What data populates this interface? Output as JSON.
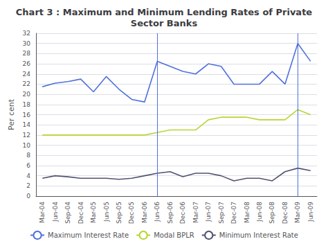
{
  "chart_data": {
    "type": "line",
    "title": "Chart 3 : Maximum and Minimum Lending Rates of Private\nSector Banks",
    "ylabel": "Per cent",
    "categories": [
      "Mar-04",
      "Jun-04",
      "Sep-04",
      "Dec-04",
      "Mar-05",
      "Jun-05",
      "Sep-05",
      "Dec-05",
      "Mar-06",
      "Jun-06",
      "Sep-06",
      "Dec-06",
      "Mar-07",
      "Jun-07",
      "Sep-07",
      "Dec-07",
      "Mar-08",
      "Jun-08",
      "Sep-08",
      "Dec-08",
      "Mar-09",
      "Jun-09"
    ],
    "series": [
      {
        "name": "Maximum Interest Rate",
        "values": [
          21.5,
          22.2,
          22.5,
          23,
          20.5,
          23.5,
          21,
          19,
          18.5,
          26.5,
          25.5,
          24.5,
          24,
          26,
          25.5,
          22,
          22,
          22,
          24.5,
          22,
          30,
          26.5
        ]
      },
      {
        "name": "Modal BPLR",
        "values": [
          12,
          12,
          12,
          12,
          12,
          12,
          12,
          12,
          12,
          12.5,
          13,
          13,
          13,
          15,
          15.5,
          15.5,
          15.5,
          15,
          15,
          15,
          17,
          16
        ]
      },
      {
        "name": "Minimum Interest Rate",
        "values": [
          3.5,
          4,
          3.8,
          3.5,
          3.5,
          3.5,
          3.3,
          3.5,
          4,
          4.5,
          4.8,
          3.8,
          4.5,
          4.5,
          4,
          3,
          3.5,
          3.5,
          3,
          4.8,
          5.5,
          5
        ]
      }
    ],
    "vlines": [
      "Jun-06",
      "Mar-09"
    ],
    "ylim": [
      0,
      32
    ],
    "yticks": [
      0,
      2,
      4,
      6,
      8,
      10,
      12,
      14,
      16,
      18,
      20,
      22,
      24,
      26,
      28,
      30,
      32
    ],
    "grid": true,
    "legend": "bottom"
  }
}
